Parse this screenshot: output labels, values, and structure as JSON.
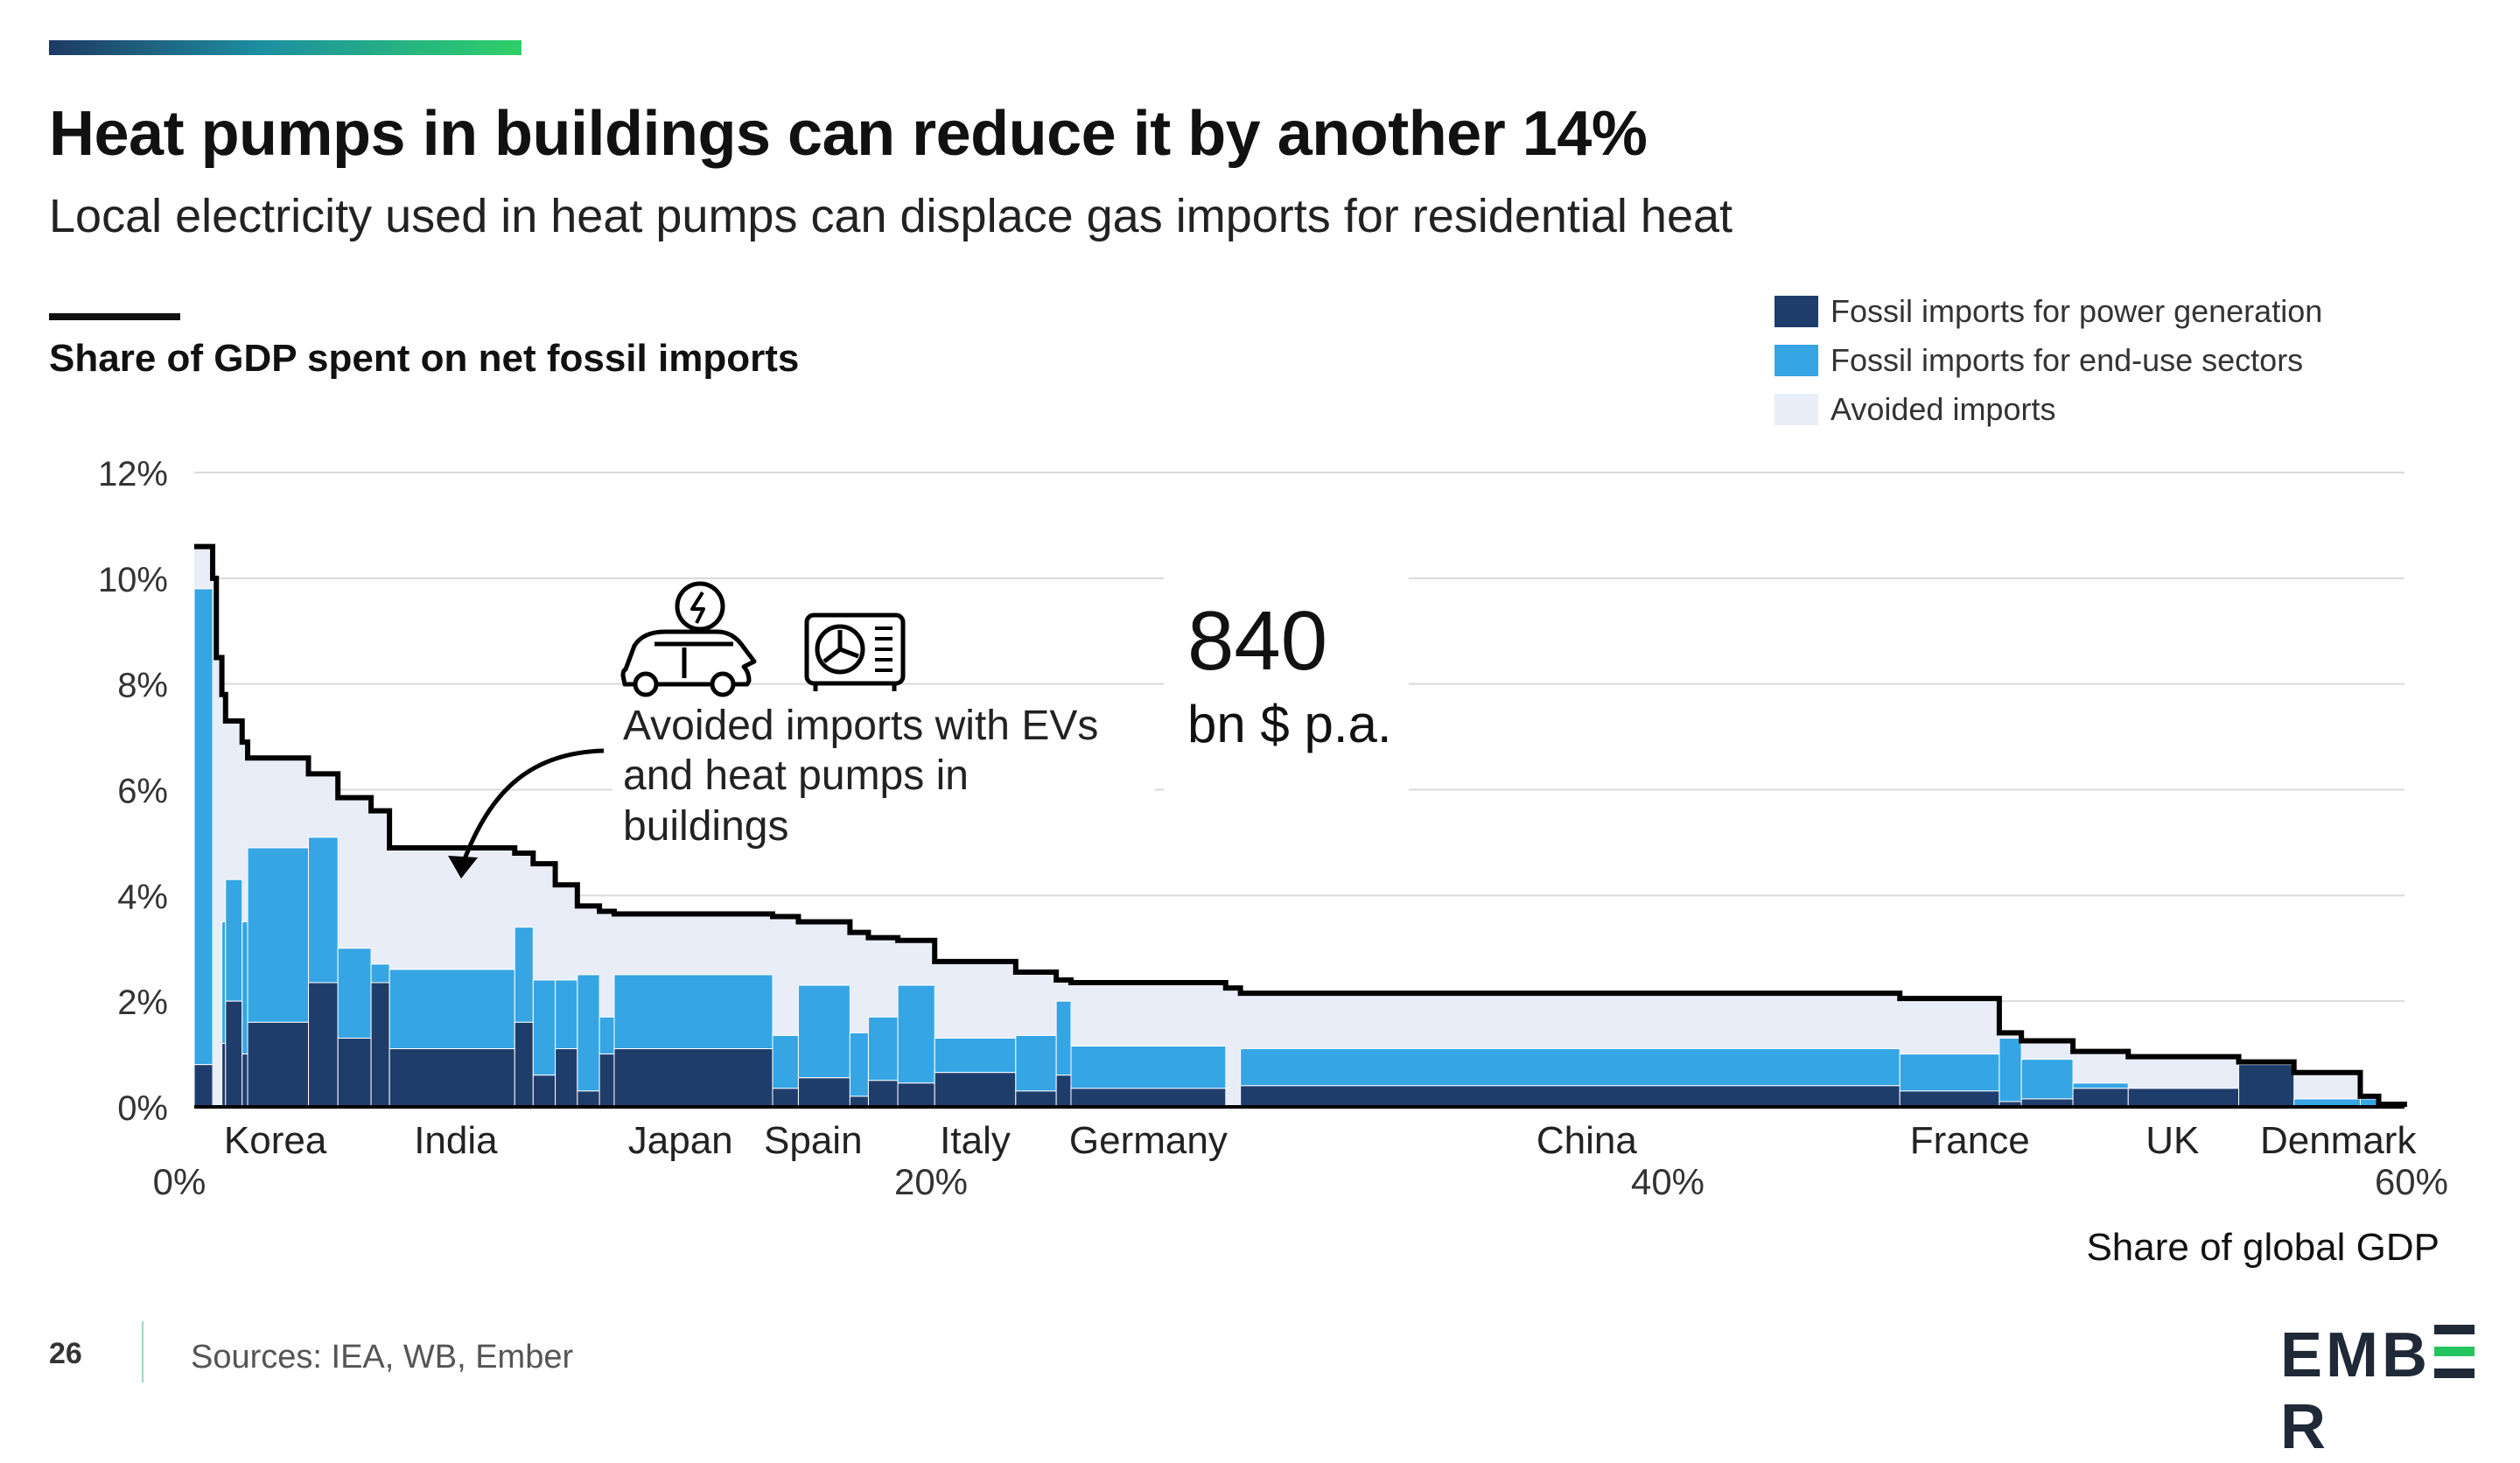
{
  "header": {
    "title": "Heat pumps in buildings can reduce it by another 14%",
    "subtitle": "Local electricity used in heat pumps can displace gas imports for residential heat"
  },
  "colors": {
    "power": "#1f3d6b",
    "enduse": "#35a5e4",
    "avoided": "#e8edf7",
    "grid": "#d9d9d9",
    "line": "#000000"
  },
  "legend": [
    {
      "label": "Fossil imports for power generation",
      "color": "#1f3d6b"
    },
    {
      "label": "Fossil imports for end-use sectors",
      "color": "#35a5e4"
    },
    {
      "label": "Avoided imports",
      "color": "#e8edf7"
    }
  ],
  "annotation": {
    "text": [
      "Avoided imports with EVs",
      "and heat pumps in",
      "buildings"
    ],
    "value": "840",
    "unit": "bn $ p.a.",
    "icons": [
      "electric-car-icon",
      "heat-pump-icon"
    ]
  },
  "footer": {
    "page": "26",
    "sources": "Sources: IEA, WB, Ember",
    "logo": "EMBER"
  },
  "chart_data": {
    "type": "area",
    "description_free": true,
    "ylabel": "Share of GDP spent on net fossil imports",
    "xlabel": "Share of global GDP",
    "ylim": [
      0,
      12
    ],
    "xlim": [
      0,
      60
    ],
    "y_ticks": [
      "0%",
      "2%",
      "4%",
      "6%",
      "8%",
      "10%",
      "12%"
    ],
    "x_ticks": [
      {
        "value": 0,
        "label": "0%"
      },
      {
        "value": 20,
        "label": "20%"
      },
      {
        "value": 40,
        "label": "40%"
      },
      {
        "value": 60,
        "label": "60%"
      }
    ],
    "country_labels": [
      {
        "label": "Korea",
        "x": 2.2
      },
      {
        "label": "India",
        "x": 7.1
      },
      {
        "label": "Japan",
        "x": 13.2
      },
      {
        "label": "Spain",
        "x": 16.8
      },
      {
        "label": "Italy",
        "x": 21.2
      },
      {
        "label": "Germany",
        "x": 25.9
      },
      {
        "label": "China",
        "x": 37.8
      },
      {
        "label": "France",
        "x": 48.2
      },
      {
        "label": "UK",
        "x": 53.7
      },
      {
        "label": "Denmark",
        "x": 58.2
      }
    ],
    "grid": true,
    "series": [
      {
        "name": "Fossil imports for power generation",
        "key": "power"
      },
      {
        "name": "Fossil imports for end-use sectors",
        "key": "enduse"
      },
      {
        "name": "Avoided imports",
        "key": "avoided"
      }
    ],
    "segments": [
      {
        "x0": 0.0,
        "x1": 0.5,
        "power": 0.8,
        "enduse": 9.0,
        "total": 10.6
      },
      {
        "x0": 0.5,
        "x1": 0.6,
        "power": 0.0,
        "enduse": 0.0,
        "total": 10.0
      },
      {
        "x0": 0.6,
        "x1": 0.75,
        "power": 0.0,
        "enduse": 0.0,
        "total": 8.5
      },
      {
        "x0": 0.75,
        "x1": 0.85,
        "power": 1.2,
        "enduse": 2.3,
        "total": 7.8
      },
      {
        "x0": 0.85,
        "x1": 1.3,
        "power": 2.0,
        "enduse": 2.3,
        "total": 7.3
      },
      {
        "x0": 1.3,
        "x1": 1.45,
        "power": 1.0,
        "enduse": 2.5,
        "total": 6.9
      },
      {
        "x0": 1.45,
        "x1": 3.1,
        "power": 1.6,
        "enduse": 3.3,
        "total": 6.6
      },
      {
        "x0": 3.1,
        "x1": 3.9,
        "power": 2.35,
        "enduse": 2.75,
        "total": 6.3
      },
      {
        "x0": 3.9,
        "x1": 4.8,
        "power": 1.3,
        "enduse": 1.7,
        "total": 5.85
      },
      {
        "x0": 4.8,
        "x1": 5.3,
        "power": 2.35,
        "enduse": 0.35,
        "total": 5.6
      },
      {
        "x0": 5.3,
        "x1": 8.7,
        "power": 1.1,
        "enduse": 1.5,
        "total": 4.9
      },
      {
        "x0": 8.7,
        "x1": 9.2,
        "power": 1.6,
        "enduse": 1.8,
        "total": 4.8
      },
      {
        "x0": 9.2,
        "x1": 9.8,
        "power": 0.6,
        "enduse": 1.8,
        "total": 4.6
      },
      {
        "x0": 9.8,
        "x1": 10.4,
        "power": 1.1,
        "enduse": 1.3,
        "total": 4.2
      },
      {
        "x0": 10.4,
        "x1": 11.0,
        "power": 0.3,
        "enduse": 2.2,
        "total": 3.8
      },
      {
        "x0": 11.0,
        "x1": 11.4,
        "power": 1.0,
        "enduse": 0.7,
        "total": 3.7
      },
      {
        "x0": 11.4,
        "x1": 15.7,
        "power": 1.1,
        "enduse": 1.4,
        "total": 3.65
      },
      {
        "x0": 15.7,
        "x1": 16.4,
        "power": 0.35,
        "enduse": 1.0,
        "total": 3.6
      },
      {
        "x0": 16.4,
        "x1": 17.8,
        "power": 0.55,
        "enduse": 1.75,
        "total": 3.5
      },
      {
        "x0": 17.8,
        "x1": 18.3,
        "power": 0.2,
        "enduse": 1.2,
        "total": 3.3
      },
      {
        "x0": 18.3,
        "x1": 19.1,
        "power": 0.5,
        "enduse": 1.2,
        "total": 3.2
      },
      {
        "x0": 19.1,
        "x1": 20.1,
        "power": 0.45,
        "enduse": 1.85,
        "total": 3.15
      },
      {
        "x0": 20.1,
        "x1": 22.3,
        "power": 0.65,
        "enduse": 0.65,
        "total": 2.75
      },
      {
        "x0": 22.3,
        "x1": 23.4,
        "power": 0.3,
        "enduse": 1.05,
        "total": 2.55
      },
      {
        "x0": 23.4,
        "x1": 23.8,
        "power": 0.6,
        "enduse": 1.4,
        "total": 2.4
      },
      {
        "x0": 23.8,
        "x1": 28.0,
        "power": 0.35,
        "enduse": 0.8,
        "total": 2.35
      },
      {
        "x0": 28.0,
        "x1": 28.4,
        "power": 0.0,
        "enduse": 0.0,
        "total": 2.25
      },
      {
        "x0": 28.4,
        "x1": 46.3,
        "power": 0.4,
        "enduse": 0.7,
        "total": 2.15
      },
      {
        "x0": 46.3,
        "x1": 49.0,
        "power": 0.3,
        "enduse": 0.7,
        "total": 2.05
      },
      {
        "x0": 49.0,
        "x1": 49.6,
        "power": 0.1,
        "enduse": 1.2,
        "total": 1.4
      },
      {
        "x0": 49.6,
        "x1": 51.0,
        "power": 0.15,
        "enduse": 0.75,
        "total": 1.25
      },
      {
        "x0": 51.0,
        "x1": 52.5,
        "power": 0.35,
        "enduse": 0.1,
        "total": 1.05
      },
      {
        "x0": 52.5,
        "x1": 55.5,
        "power": 0.35,
        "enduse": 0.0,
        "total": 0.95
      },
      {
        "x0": 55.5,
        "x1": 57.0,
        "power": 0.8,
        "enduse": 0.0,
        "total": 0.85
      },
      {
        "x0": 57.0,
        "x1": 58.8,
        "power": 0.0,
        "enduse": 0.15,
        "total": 0.65
      },
      {
        "x0": 58.8,
        "x1": 59.3,
        "power": 0.0,
        "enduse": 0.15,
        "total": 0.2
      },
      {
        "x0": 59.3,
        "x1": 60.0,
        "power": 0.0,
        "enduse": 0.0,
        "total": 0.05
      }
    ]
  }
}
